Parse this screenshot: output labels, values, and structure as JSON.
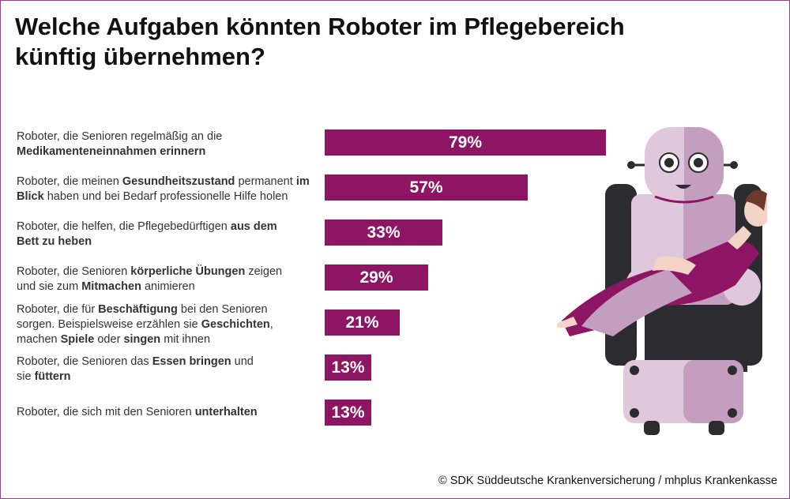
{
  "title_line1": "Welche Aufgaben könnten Roboter im Pflegebereich",
  "title_line2": "künftig übernehmen?",
  "credit": "© SDK Süddeutsche Krankenversicherung / mhplus Krankenkasse",
  "colors": {
    "bar": "#8e1564",
    "accent": "#a2398f"
  },
  "labels": [
    [
      {
        "t": "Roboter, die Senioren regelmäßig an die ",
        "b": false
      },
      {
        "t": "Medikamenteneinnahmen erinnern",
        "b": true
      }
    ],
    [
      {
        "t": "Roboter, die meinen ",
        "b": false
      },
      {
        "t": "Gesundheitszustand",
        "b": true
      },
      {
        "t": " permanent ",
        "b": false
      },
      {
        "t": "im Blick",
        "b": true
      },
      {
        "t": " haben und bei Bedarf professionelle Hilfe holen",
        "b": false
      }
    ],
    [
      {
        "t": "Roboter, die helfen, die Pflegebedürftigen ",
        "b": false
      },
      {
        "t": "aus dem Bett zu heben",
        "b": true
      }
    ],
    [
      {
        "t": "Roboter, die Senioren ",
        "b": false
      },
      {
        "t": "körperliche Übungen",
        "b": true
      },
      {
        "t": " zeigen und sie zum ",
        "b": false
      },
      {
        "t": "Mitmachen",
        "b": true
      },
      {
        "t": " animieren",
        "b": false
      }
    ],
    [
      {
        "t": "Roboter, die für ",
        "b": false
      },
      {
        "t": "Beschäftigung",
        "b": true
      },
      {
        "t": " bei den Senioren sorgen. Beispielsweise erzählen sie ",
        "b": false
      },
      {
        "t": "Geschichten",
        "b": true
      },
      {
        "t": ", machen ",
        "b": false
      },
      {
        "t": "Spiele",
        "b": true
      },
      {
        "t": " oder ",
        "b": false
      },
      {
        "t": "singen",
        "b": true
      },
      {
        "t": " mit ihnen",
        "b": false
      }
    ],
    [
      {
        "t": "Roboter, die Senioren das ",
        "b": false
      },
      {
        "t": "Essen bringen",
        "b": true
      },
      {
        "t": " und sie ",
        "b": false
      },
      {
        "t": "füttern",
        "b": true
      }
    ],
    [
      {
        "t": "Roboter, die sich mit den Senioren ",
        "b": false
      },
      {
        "t": "unterhalten",
        "b": true
      }
    ]
  ],
  "chart_data": {
    "type": "bar",
    "orientation": "horizontal",
    "categories": [
      "Roboter, die Senioren regelmäßig an die Medikamenteneinnahmen erinnern",
      "Roboter, die meinen Gesundheitszustand permanent im Blick haben und bei Bedarf professionelle Hilfe holen",
      "Roboter, die helfen, die Pflegebedürftigen aus dem Bett zu heben",
      "Roboter, die Senioren körperliche Übungen zeigen und sie zum Mitmachen animieren",
      "Roboter, die für Beschäftigung bei den Senioren sorgen. Beispielsweise erzählen sie Geschichten, machen Spiele oder singen mit ihnen",
      "Roboter, die Senioren das Essen bringen und sie füttern",
      "Roboter, die sich mit den Senioren unterhalten"
    ],
    "values": [
      79,
      57,
      33,
      29,
      21,
      13,
      13
    ],
    "value_labels": [
      "79%",
      "57%",
      "33%",
      "29%",
      "21%",
      "13%",
      "13%"
    ],
    "unit": "%",
    "xlim": [
      0,
      100
    ],
    "grid": false,
    "title": "Welche Aufgaben könnten Roboter im Pflegebereich künftig übernehmen?"
  }
}
